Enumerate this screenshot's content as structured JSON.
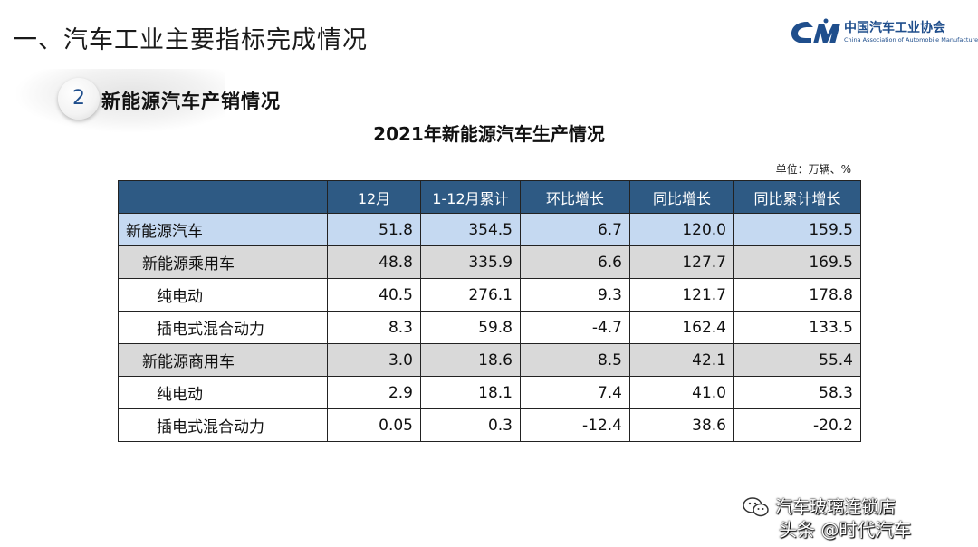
{
  "heading": "一、汽车工业主要指标完成情况",
  "logo": {
    "name_cn": "中国汽车工业协会",
    "name_en": "China Association of Automobile Manufacturers"
  },
  "subsection": {
    "number": "2",
    "title": "新能源汽车产销情况"
  },
  "table": {
    "title": "2021年新能源汽车生产情况",
    "unit": "单位：万辆、%",
    "columns": [
      "",
      "12月",
      "1-12月累计",
      "环比增长",
      "同比增长",
      "同比累计增长"
    ],
    "rows": [
      {
        "level": 0,
        "cells": [
          "新能源汽车",
          "51.8",
          "354.5",
          "6.7",
          "120.0",
          "159.5"
        ]
      },
      {
        "level": 1,
        "cells": [
          "新能源乘用车",
          "48.8",
          "335.9",
          "6.6",
          "127.7",
          "169.5"
        ]
      },
      {
        "level": 2,
        "cells": [
          "纯电动",
          "40.5",
          "276.1",
          "9.3",
          "121.7",
          "178.8"
        ]
      },
      {
        "level": 2,
        "cells": [
          "插电式混合动力",
          "8.3",
          "59.8",
          "-4.7",
          "162.4",
          "133.5"
        ]
      },
      {
        "level": 1,
        "cells": [
          "新能源商用车",
          "3.0",
          "18.6",
          "8.5",
          "42.1",
          "55.4"
        ]
      },
      {
        "level": 2,
        "cells": [
          "纯电动",
          "2.9",
          "18.1",
          "7.4",
          "41.0",
          "58.3"
        ]
      },
      {
        "level": 2,
        "cells": [
          "插电式混合动力",
          "0.05",
          "0.3",
          "-12.4",
          "38.6",
          "-20.2"
        ]
      }
    ]
  },
  "watermark": {
    "line1": "汽车玻璃连锁店",
    "line2": "头条 @时代汽车"
  },
  "colors": {
    "header_bg": "#2e5a84",
    "total_row_bg": "#c5d9f1",
    "category_row_bg": "#d9d9d9",
    "brand_blue": "#1f4e8c"
  }
}
